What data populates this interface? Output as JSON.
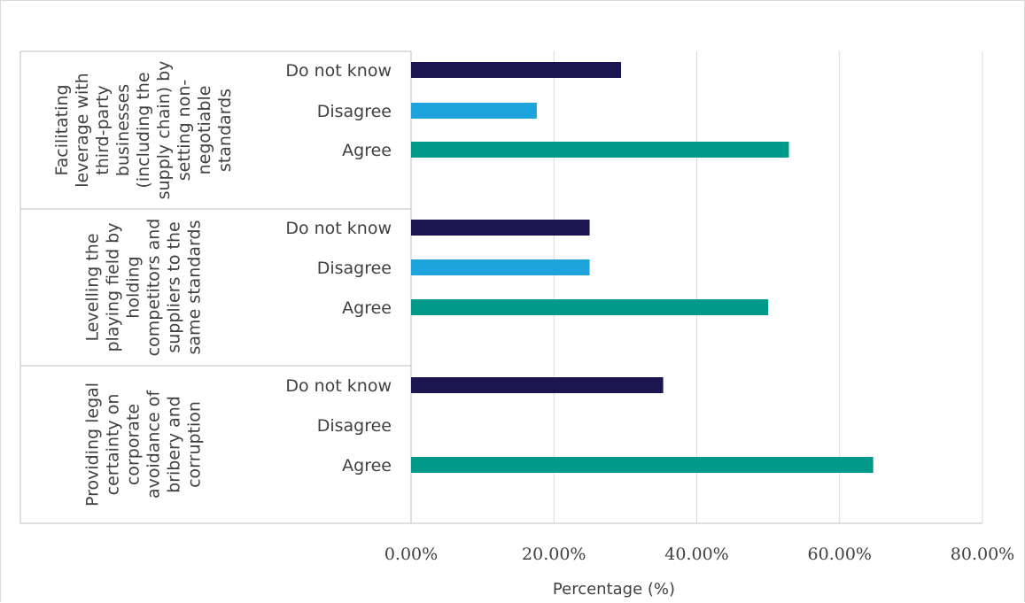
{
  "chart_data": {
    "type": "bar",
    "orientation": "horizontal",
    "xlabel": "Percentage (%)",
    "xlim": [
      0,
      80
    ],
    "ticks": [
      "0.00%",
      "20.00%",
      "40.00%",
      "60.00%",
      "80.00%"
    ],
    "grid": true,
    "legend": "none",
    "colors": {
      "Do not know": "#1b1650",
      "Disagree": "#1ea3dc",
      "Agree": "#00998a"
    },
    "groups": [
      {
        "label_lines": [
          "Facilitating",
          "leverage with",
          "third-party",
          "businesses",
          "(including the",
          "supply chain) by",
          "setting non-",
          "negotiable",
          "standards"
        ],
        "bars": [
          {
            "label": "Do not know",
            "value": 29.4
          },
          {
            "label": "Disagree",
            "value": 17.6
          },
          {
            "label": "Agree",
            "value": 52.9
          }
        ]
      },
      {
        "label_lines": [
          "Levelling the",
          "playing field by",
          "holding",
          "competitors and",
          "suppliers to the",
          "same standards"
        ],
        "bars": [
          {
            "label": "Do not know",
            "value": 25.0
          },
          {
            "label": "Disagree",
            "value": 25.0
          },
          {
            "label": "Agree",
            "value": 50.0
          }
        ]
      },
      {
        "label_lines": [
          "Providing legal",
          "certainty on",
          "corporate",
          "avoidance of",
          "bribery and",
          "corruption"
        ],
        "bars": [
          {
            "label": "Do not know",
            "value": 35.3
          },
          {
            "label": "Disagree",
            "value": 0
          },
          {
            "label": "Agree",
            "value": 64.7
          }
        ]
      }
    ]
  }
}
